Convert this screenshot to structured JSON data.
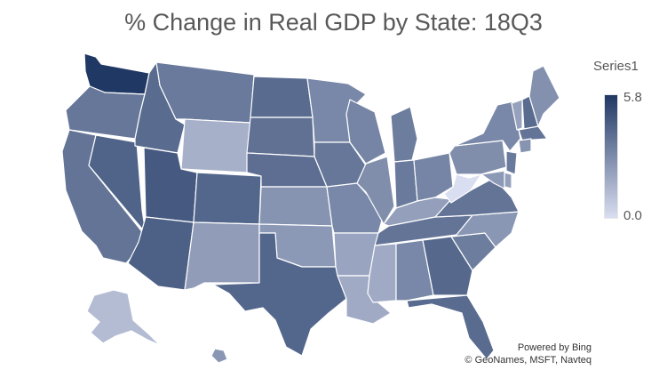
{
  "title": "% Change in Real GDP by State: 18Q3",
  "legend": {
    "title": "Series1",
    "max_label": "5.8",
    "min_label": "0.0",
    "min_value": 0.0,
    "max_value": 5.8,
    "color_low": "#d9def0",
    "color_high": "#203864"
  },
  "attribution": {
    "line1": "Powered by Bing",
    "line2": "© GeoNames, MSFT, Navteq"
  },
  "map_data": {
    "type": "choropleth",
    "region": "United States",
    "metric": "% change in real GDP",
    "states": [
      {
        "code": "WA",
        "value": 5.8
      },
      {
        "code": "OR",
        "value": 3.6
      },
      {
        "code": "CA",
        "value": 3.7
      },
      {
        "code": "NV",
        "value": 4.3
      },
      {
        "code": "ID",
        "value": 4.0
      },
      {
        "code": "MT",
        "value": 3.5
      },
      {
        "code": "WY",
        "value": 1.6
      },
      {
        "code": "UT",
        "value": 4.6
      },
      {
        "code": "AZ",
        "value": 4.4
      },
      {
        "code": "CO",
        "value": 4.2
      },
      {
        "code": "NM",
        "value": 2.3
      },
      {
        "code": "ND",
        "value": 4.0
      },
      {
        "code": "SD",
        "value": 3.8
      },
      {
        "code": "NE",
        "value": 3.9
      },
      {
        "code": "KS",
        "value": 2.6
      },
      {
        "code": "OK",
        "value": 2.4
      },
      {
        "code": "TX",
        "value": 4.2
      },
      {
        "code": "MN",
        "value": 3.0
      },
      {
        "code": "IA",
        "value": 3.6
      },
      {
        "code": "MO",
        "value": 3.0
      },
      {
        "code": "AR",
        "value": 2.0
      },
      {
        "code": "LA",
        "value": 1.8
      },
      {
        "code": "WI",
        "value": 3.1
      },
      {
        "code": "IL",
        "value": 2.8
      },
      {
        "code": "MI",
        "value": 3.4
      },
      {
        "code": "IN",
        "value": 3.5
      },
      {
        "code": "OH",
        "value": 3.1
      },
      {
        "code": "KY",
        "value": 2.2
      },
      {
        "code": "TN",
        "value": 3.7
      },
      {
        "code": "MS",
        "value": 1.8
      },
      {
        "code": "AL",
        "value": 3.0
      },
      {
        "code": "GA",
        "value": 4.1
      },
      {
        "code": "FL",
        "value": 4.0
      },
      {
        "code": "SC",
        "value": 3.4
      },
      {
        "code": "NC",
        "value": 2.5
      },
      {
        "code": "VA",
        "value": 3.7
      },
      {
        "code": "WV",
        "value": 0.0
      },
      {
        "code": "PA",
        "value": 2.8
      },
      {
        "code": "NY",
        "value": 3.0
      },
      {
        "code": "VT",
        "value": 2.1
      },
      {
        "code": "NH",
        "value": 4.0
      },
      {
        "code": "ME",
        "value": 2.7
      },
      {
        "code": "MA",
        "value": 3.7
      },
      {
        "code": "CT",
        "value": 2.6
      },
      {
        "code": "NJ",
        "value": 3.5
      },
      {
        "code": "DE",
        "value": 2.2
      },
      {
        "code": "MD",
        "value": 2.4
      },
      {
        "code": "AK",
        "value": 1.2
      },
      {
        "code": "HI",
        "value": 2.5
      }
    ]
  }
}
